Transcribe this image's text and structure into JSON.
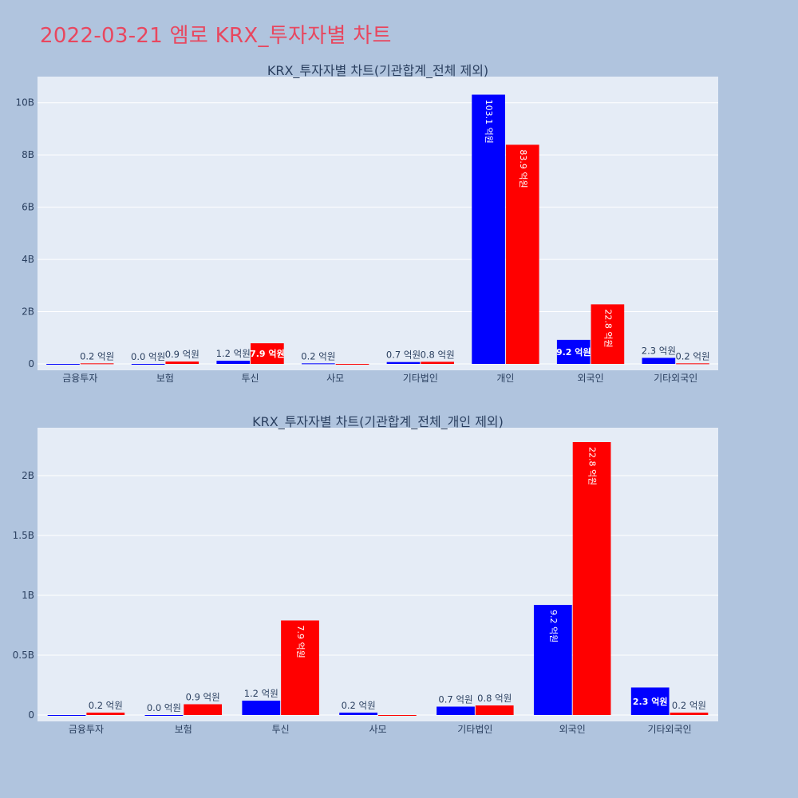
{
  "page": {
    "title": "2022-03-21 엠로 KRX_투자자별 차트"
  },
  "colors": {
    "buy": "#0000ff",
    "sell": "#ff0000",
    "plot_bg": "#e5ecf6",
    "page_bg": "#b0c4de",
    "title": "#e8475f"
  },
  "chart_data": [
    {
      "type": "bar",
      "title": "KRX_투자자별 차트(기관합계_전체 제외)",
      "categories": [
        "금융투자",
        "보험",
        "투신",
        "사모",
        "기타법인",
        "개인",
        "외국인",
        "기타외국인"
      ],
      "series": [
        {
          "values": [
            0,
            0,
            120000000,
            20000000,
            70000000,
            10310000000,
            920000000,
            230000000
          ],
          "labels": [
            "",
            "0.0 억원",
            "1.2 억원",
            "0.2 억원",
            "0.7 억원",
            "103.1 억원",
            "9.2 억원",
            "2.3 억원"
          ]
        },
        {
          "values": [
            20000000,
            90000000,
            790000000,
            0,
            80000000,
            8390000000,
            2280000000,
            20000000
          ],
          "labels": [
            "0.2 억원",
            "0.9 억원",
            "7.9 억원",
            "",
            "0.8 억원",
            "83.9 억원",
            "22.8 억원",
            "0.2 억원"
          ]
        }
      ],
      "yticks": [
        0,
        2000000000,
        4000000000,
        6000000000,
        8000000000,
        10000000000
      ],
      "ytick_labels": [
        "0",
        "2B",
        "4B",
        "6B",
        "8B",
        "10B"
      ],
      "ylim": [
        0,
        11000000000
      ],
      "grid": true
    },
    {
      "type": "bar",
      "title": "KRX_투자자별 차트(기관합계_전체_개인 제외)",
      "categories": [
        "금융투자",
        "보험",
        "투신",
        "사모",
        "기타법인",
        "외국인",
        "기타외국인"
      ],
      "series": [
        {
          "values": [
            0,
            0,
            120000000,
            20000000,
            70000000,
            920000000,
            230000000
          ],
          "labels": [
            "",
            "0.0 억원",
            "1.2 억원",
            "0.2 억원",
            "0.7 억원",
            "9.2 억원",
            "2.3 억원"
          ]
        },
        {
          "values": [
            20000000,
            90000000,
            790000000,
            0,
            80000000,
            2280000000,
            20000000
          ],
          "labels": [
            "0.2 억원",
            "0.9 억원",
            "7.9 억원",
            "",
            "0.8 억원",
            "22.8 억원",
            "0.2 억원"
          ]
        }
      ],
      "yticks": [
        0,
        500000000,
        1000000000,
        1500000000,
        2000000000
      ],
      "ytick_labels": [
        "0",
        "0.5B",
        "1B",
        "1.5B",
        "2B"
      ],
      "ylim": [
        0,
        2400000000
      ],
      "grid": true
    }
  ]
}
